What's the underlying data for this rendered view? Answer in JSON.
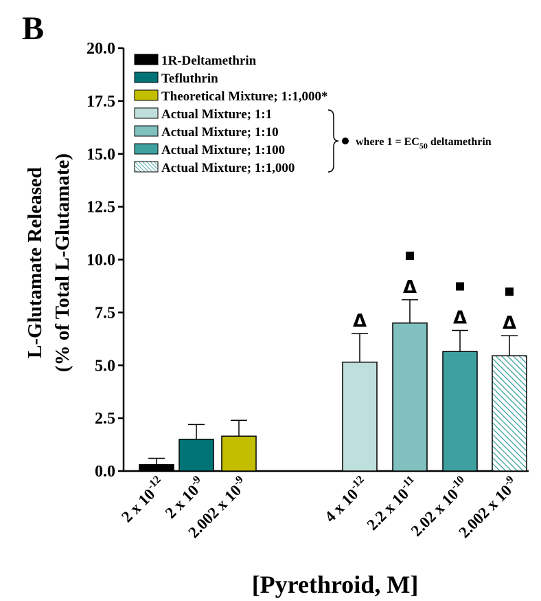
{
  "panel_label": "B",
  "chart_data": {
    "type": "bar",
    "ylabel_line1": "L-Glutamate Released",
    "ylabel_line2": "(% of Total L-Glutamate)",
    "xlabel": "[Pyrethroid, M]",
    "ylim": [
      0,
      20
    ],
    "yticks": [
      "0.0",
      "2.5",
      "5.0",
      "7.5",
      "10.0",
      "12.5",
      "15.0",
      "17.5",
      "20.0"
    ],
    "ytick_values": [
      0,
      2.5,
      5,
      7.5,
      10,
      12.5,
      15,
      17.5,
      20
    ],
    "bars": [
      {
        "series": "1R-Deltamethrin",
        "tick_base": "2 x 10",
        "tick_exp": "-12",
        "value": 0.3,
        "error": 0.3,
        "fill": "#000000",
        "delta": false,
        "square": false
      },
      {
        "series": "Tefluthrin",
        "tick_base": "2 x 10",
        "tick_exp": "-9",
        "value": 1.5,
        "error": 0.7,
        "fill": "#007377",
        "delta": false,
        "square": false
      },
      {
        "series": "Theoretical Mixture; 1:1,000*",
        "tick_base": "2.002 x 10",
        "tick_exp": "-9",
        "value": 1.65,
        "error": 0.75,
        "fill": "#c3bf00",
        "delta": false,
        "square": false
      },
      {
        "series": "Actual Mixture; 1:1",
        "tick_base": "4 x 10",
        "tick_exp": "-12",
        "value": 5.15,
        "error": 1.35,
        "fill": "#bfdfdd",
        "delta": true,
        "square": false
      },
      {
        "series": "Actual Mixture; 1:10",
        "tick_base": "2.2 x 10",
        "tick_exp": "-11",
        "value": 7.0,
        "error": 1.1,
        "fill": "#80c0be",
        "delta": true,
        "square": true
      },
      {
        "series": "Actual Mixture; 1:100",
        "tick_base": "2.02 x 10",
        "tick_exp": "-10",
        "value": 5.65,
        "error": 1.0,
        "fill": "#3ea19f",
        "delta": true,
        "square": true
      },
      {
        "series": "Actual Mixture; 1:1,000",
        "tick_base": "2.002 x 10",
        "tick_exp": "-9",
        "value": 5.45,
        "error": 0.95,
        "fill": "hatch",
        "delta": true,
        "square": true
      }
    ],
    "legend": {
      "placement": "top-left",
      "items": [
        {
          "label": "1R-Deltamethrin",
          "fill": "#000000"
        },
        {
          "label": "Tefluthrin",
          "fill": "#007377"
        },
        {
          "label": "Theoretical Mixture; 1:1,000*",
          "fill": "#c3bf00"
        },
        {
          "label": "Actual Mixture; 1:1",
          "fill": "#bfdfdd"
        },
        {
          "label": "Actual Mixture; 1:10",
          "fill": "#80c0be"
        },
        {
          "label": "Actual Mixture; 1:100",
          "fill": "#3ea19f"
        },
        {
          "label": "Actual Mixture; 1:1,000",
          "fill": "hatch"
        }
      ],
      "note_prefix": "where 1 = EC",
      "note_subscript": "50",
      "note_suffix": " deltamethrin"
    },
    "delta_symbol": "Δ",
    "hatch_color": "#2a9a98"
  }
}
